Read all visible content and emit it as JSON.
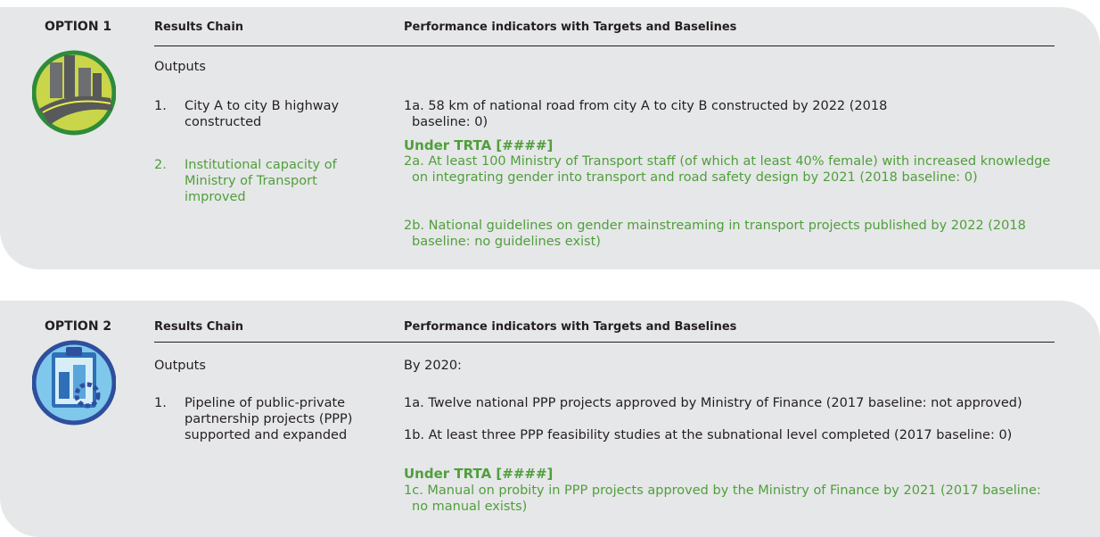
{
  "options": [
    {
      "label": "OPTION 1",
      "columns": {
        "results_chain": "Results Chain",
        "indicators": "Performance indicators with Targets and Baselines"
      },
      "section": "Outputs",
      "outputs": [
        {
          "number": "1.",
          "text": "City A to city B highway constructed"
        },
        {
          "number": "2.",
          "text": "Institutional capacity of Ministry of Transport improved"
        }
      ],
      "indicators": [
        {
          "text": "1a. 58 km of national road from city A to city B constructed by 2022 (2018 baseline: 0)"
        }
      ],
      "trta": {
        "heading": "Under TRTA [####]",
        "items": [
          "2a. At least 100 Ministry of Transport staff (of which at least 40% female) with increased knowledge on integrating gender into transport and road safety design by 2021 (2018 baseline: 0)",
          "2b. National guidelines on gender mainstreaming in transport projects published by 2022 (2018 baseline: no guidelines exist)"
        ]
      }
    },
    {
      "label": "OPTION 2",
      "columns": {
        "results_chain": "Results Chain",
        "indicators": "Performance indicators with Targets and Baselines"
      },
      "section": "Outputs",
      "by": "By 2020:",
      "outputs": [
        {
          "number": "1.",
          "text": "Pipeline of public-private partnership projects (PPP) supported and expanded"
        }
      ],
      "indicators": [
        {
          "text": "1a. Twelve national PPP projects approved by Ministry of Finance (2017 baseline: not approved)"
        },
        {
          "text": "1b. At least three PPP feasibility studies at the subnational level completed (2017 baseline: 0)"
        }
      ],
      "trta": {
        "heading": "Under TRTA [####]",
        "items": [
          "1c. Manual on probity in PPP projects approved by the Ministry of Finance by 2021 (2017 baseline: no manual exists)"
        ]
      }
    }
  ]
}
